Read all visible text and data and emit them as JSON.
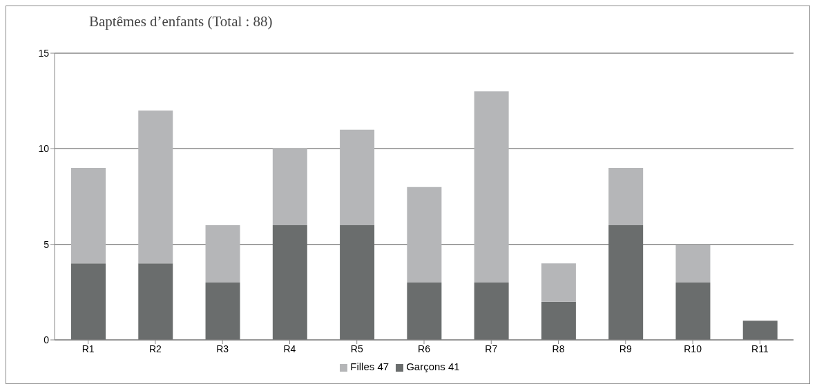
{
  "chart_data": {
    "type": "bar",
    "title": "Baptêmes d’enfants (Total  : 88)",
    "categories": [
      "R1",
      "R2",
      "R3",
      "R4",
      "R5",
      "R6",
      "R7",
      "R8",
      "R9",
      "R10",
      "R11"
    ],
    "stacked": true,
    "series": [
      {
        "name": "Garçons 41",
        "color": "#6a6d6d",
        "values": [
          4,
          4,
          3,
          6,
          6,
          3,
          3,
          2,
          6,
          3,
          1
        ]
      },
      {
        "name": "Filles 47",
        "color": "#b5b6b8",
        "values": [
          5,
          8,
          3,
          4,
          5,
          5,
          10,
          2,
          3,
          2,
          0
        ]
      }
    ],
    "ylim": [
      0,
      15
    ],
    "yticks": [
      0,
      5,
      10,
      15
    ],
    "grid": "y",
    "legend": "bottom"
  }
}
